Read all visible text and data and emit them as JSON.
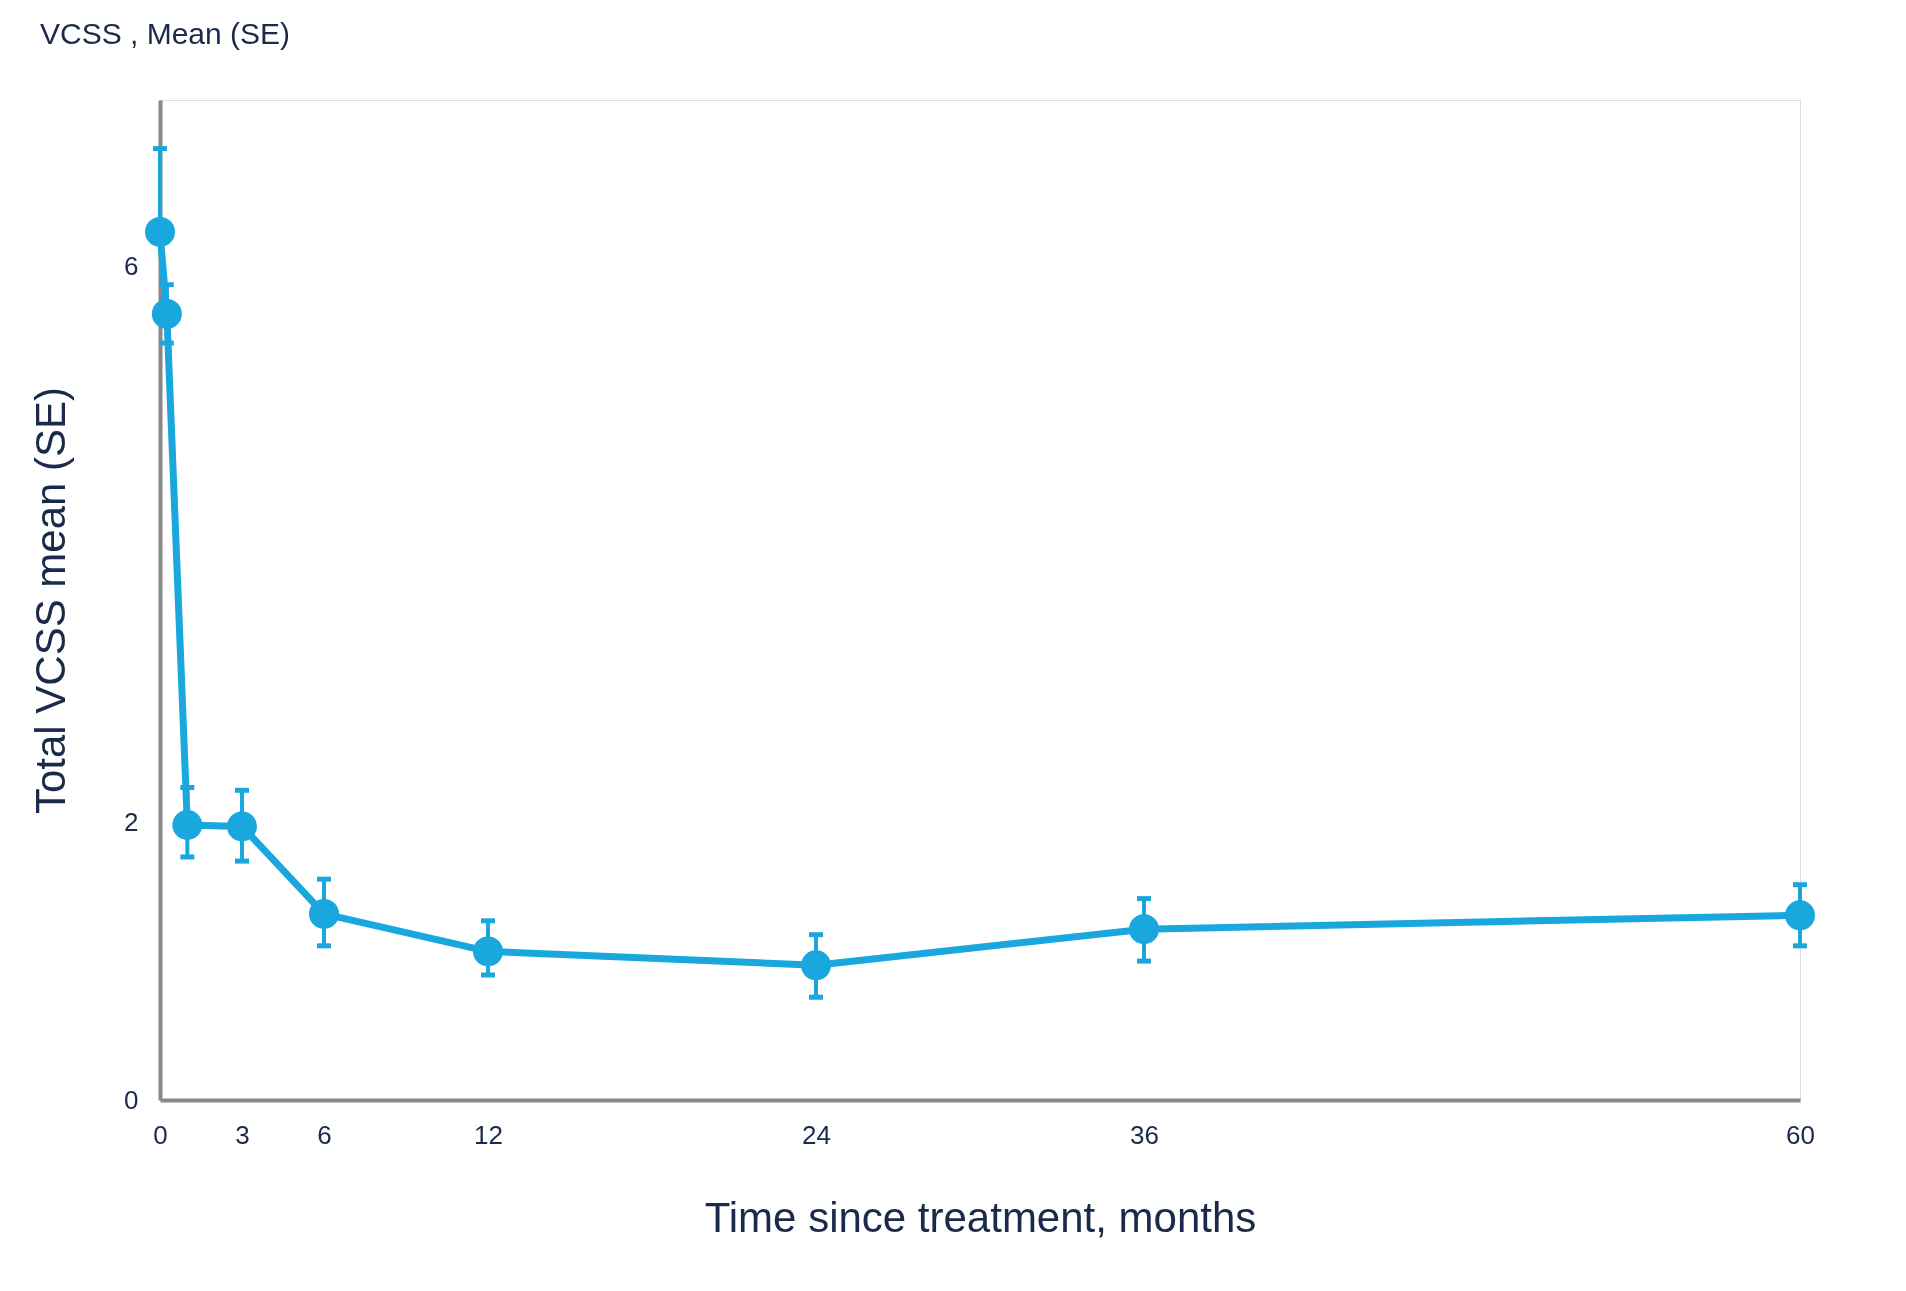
{
  "chart_data": {
    "type": "line",
    "title": "VCSS , Mean (SE)",
    "xlabel": "Time since treatment, months",
    "ylabel": "Total VCSS mean (SE)",
    "x": [
      0,
      0.25,
      1,
      3,
      6,
      12,
      24,
      36,
      60
    ],
    "series": [
      {
        "color": "#1aa7de",
        "values": [
          6.25,
          5.66,
          1.98,
          1.97,
          1.34,
          1.07,
          0.97,
          1.23,
          1.33
        ],
        "errors": [
          [
            6.25,
            6.85
          ],
          [
            5.45,
            5.87
          ],
          [
            1.75,
            2.25
          ],
          [
            1.72,
            2.23
          ],
          [
            1.11,
            1.59
          ],
          [
            0.9,
            1.29
          ],
          [
            0.74,
            1.19
          ],
          [
            1.0,
            1.45
          ],
          [
            1.11,
            1.55
          ]
        ]
      }
    ],
    "xlim": [
      0,
      60
    ],
    "ylim": [
      0,
      7.2
    ],
    "xticks": [
      0,
      3,
      6,
      12,
      24,
      36,
      60
    ],
    "yticks": [
      0,
      2,
      6
    ],
    "grid": false,
    "legend": false,
    "marker": "circle",
    "line_style": "solid"
  }
}
